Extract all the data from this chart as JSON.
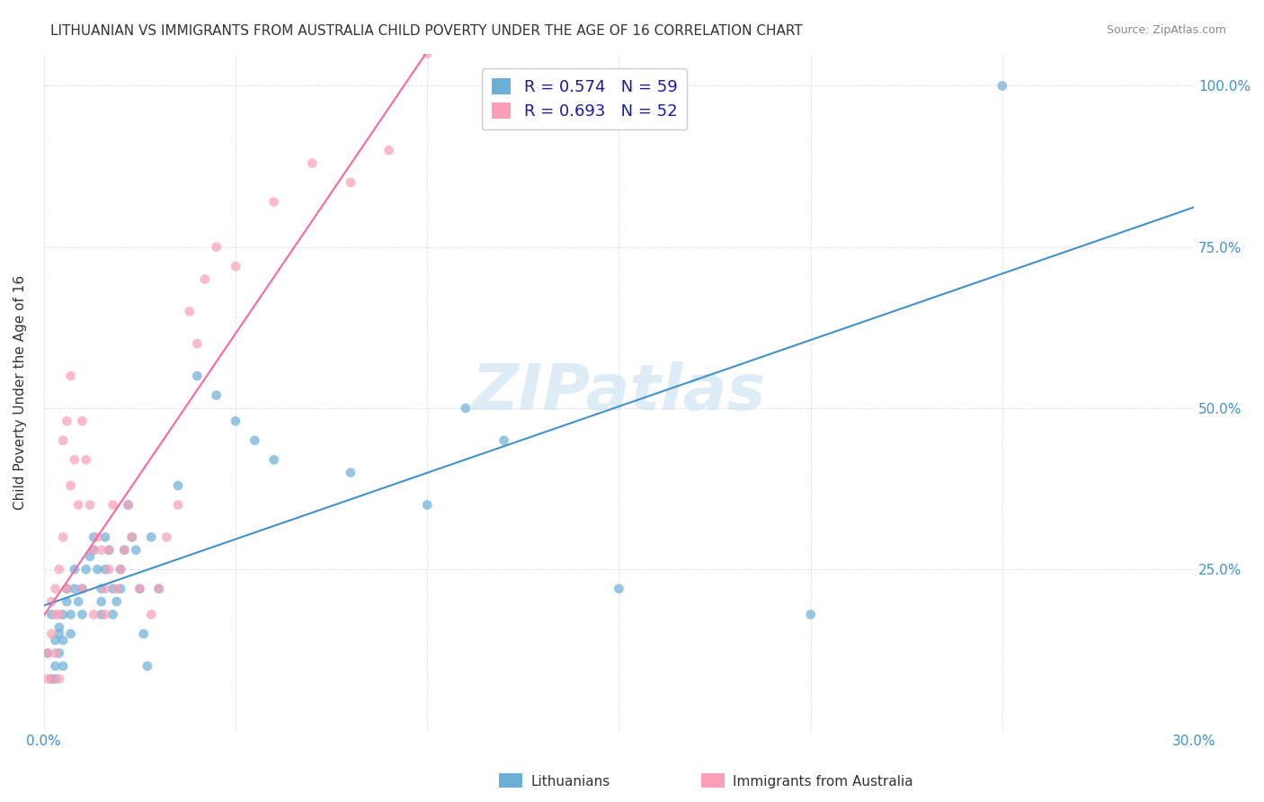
{
  "title": "LITHUANIAN VS IMMIGRANTS FROM AUSTRALIA CHILD POVERTY UNDER THE AGE OF 16 CORRELATION CHART",
  "source": "Source: ZipAtlas.com",
  "ylabel": "Child Poverty Under the Age of 16",
  "xlim": [
    0.0,
    0.3
  ],
  "ylim": [
    0.0,
    1.05
  ],
  "yticks": [
    0.0,
    0.25,
    0.5,
    0.75,
    1.0
  ],
  "xticks": [
    0.0,
    0.05,
    0.1,
    0.15,
    0.2,
    0.25,
    0.3
  ],
  "xtick_labels": [
    "0.0%",
    "",
    "",
    "",
    "",
    "",
    "30.0%"
  ],
  "ytick_labels_right": [
    "",
    "25.0%",
    "50.0%",
    "75.0%",
    "100.0%"
  ],
  "legend_labels": [
    "Lithuanians",
    "Immigrants from Australia"
  ],
  "blue_color": "#6baed6",
  "pink_color": "#fa9fb5",
  "blue_line_color": "#4292c6",
  "pink_line_color": "#f768a1",
  "R_blue": 0.574,
  "N_blue": 59,
  "R_pink": 0.693,
  "N_pink": 52,
  "blue_scatter_x": [
    0.001,
    0.002,
    0.002,
    0.003,
    0.003,
    0.003,
    0.004,
    0.004,
    0.004,
    0.005,
    0.005,
    0.005,
    0.006,
    0.006,
    0.007,
    0.007,
    0.008,
    0.008,
    0.009,
    0.01,
    0.01,
    0.011,
    0.012,
    0.013,
    0.013,
    0.014,
    0.015,
    0.015,
    0.015,
    0.016,
    0.016,
    0.017,
    0.018,
    0.018,
    0.019,
    0.02,
    0.02,
    0.021,
    0.022,
    0.023,
    0.024,
    0.025,
    0.026,
    0.027,
    0.028,
    0.03,
    0.035,
    0.04,
    0.045,
    0.05,
    0.055,
    0.06,
    0.08,
    0.1,
    0.11,
    0.12,
    0.15,
    0.2,
    0.25
  ],
  "blue_scatter_y": [
    0.12,
    0.08,
    0.18,
    0.1,
    0.14,
    0.08,
    0.15,
    0.12,
    0.16,
    0.1,
    0.14,
    0.18,
    0.2,
    0.22,
    0.15,
    0.18,
    0.22,
    0.25,
    0.2,
    0.18,
    0.22,
    0.25,
    0.27,
    0.28,
    0.3,
    0.25,
    0.2,
    0.22,
    0.18,
    0.25,
    0.3,
    0.28,
    0.22,
    0.18,
    0.2,
    0.25,
    0.22,
    0.28,
    0.35,
    0.3,
    0.28,
    0.22,
    0.15,
    0.1,
    0.3,
    0.22,
    0.38,
    0.55,
    0.52,
    0.48,
    0.45,
    0.42,
    0.4,
    0.35,
    0.5,
    0.45,
    0.22,
    0.18,
    1.0
  ],
  "pink_scatter_x": [
    0.001,
    0.001,
    0.002,
    0.002,
    0.002,
    0.003,
    0.003,
    0.003,
    0.004,
    0.004,
    0.004,
    0.005,
    0.005,
    0.006,
    0.006,
    0.007,
    0.007,
    0.008,
    0.009,
    0.01,
    0.01,
    0.011,
    0.012,
    0.013,
    0.013,
    0.014,
    0.015,
    0.016,
    0.016,
    0.017,
    0.017,
    0.018,
    0.019,
    0.02,
    0.021,
    0.022,
    0.023,
    0.025,
    0.028,
    0.03,
    0.032,
    0.035,
    0.038,
    0.04,
    0.042,
    0.045,
    0.05,
    0.06,
    0.07,
    0.08,
    0.09,
    0.1
  ],
  "pink_scatter_y": [
    0.08,
    0.12,
    0.15,
    0.2,
    0.08,
    0.22,
    0.18,
    0.12,
    0.25,
    0.18,
    0.08,
    0.3,
    0.45,
    0.22,
    0.48,
    0.55,
    0.38,
    0.42,
    0.35,
    0.48,
    0.22,
    0.42,
    0.35,
    0.28,
    0.18,
    0.3,
    0.28,
    0.22,
    0.18,
    0.28,
    0.25,
    0.35,
    0.22,
    0.25,
    0.28,
    0.35,
    0.3,
    0.22,
    0.18,
    0.22,
    0.3,
    0.35,
    0.65,
    0.6,
    0.7,
    0.75,
    0.72,
    0.82,
    0.88,
    0.85,
    0.9,
    1.05
  ],
  "watermark": "ZIPatlas",
  "background_color": "#ffffff",
  "grid_color": "#dddddd",
  "label_color_blue": "#4292c6",
  "label_color_dark": "#333333",
  "label_color_source": "#888888"
}
